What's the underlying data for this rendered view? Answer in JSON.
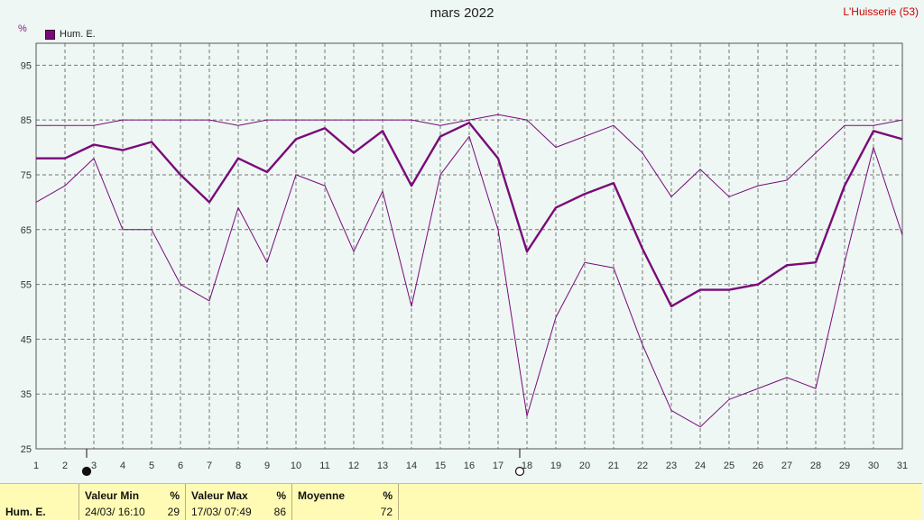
{
  "title": "mars 2022",
  "station": "L'Huisserie (53)",
  "unit": "%",
  "legend": {
    "label": "Hum. E."
  },
  "chart_data": {
    "type": "line",
    "title": "mars 2022",
    "ylabel": "%",
    "ylim": [
      25,
      99
    ],
    "yticks": [
      25,
      35,
      45,
      55,
      65,
      75,
      85,
      95
    ],
    "x": [
      1,
      2,
      3,
      4,
      5,
      6,
      7,
      8,
      9,
      10,
      11,
      12,
      13,
      14,
      15,
      16,
      17,
      18,
      19,
      20,
      21,
      22,
      23,
      24,
      25,
      26,
      27,
      28,
      29,
      30,
      31
    ],
    "grid": true,
    "legend_position": "top-left",
    "series": [
      {
        "name": "Hum. E.",
        "role": "max",
        "values": [
          84,
          84,
          84,
          85,
          85,
          85,
          85,
          84,
          85,
          85,
          85,
          85,
          85,
          85,
          84,
          85,
          86,
          85,
          80,
          82,
          84,
          79,
          71,
          76,
          71,
          73,
          74,
          79,
          84,
          84,
          85
        ]
      },
      {
        "name": "Hum. E.",
        "role": "mean",
        "values": [
          78,
          78,
          80.5,
          79.5,
          81,
          75,
          70,
          78,
          75.5,
          81.5,
          83.5,
          79,
          83,
          73,
          82,
          84.5,
          78,
          61,
          69,
          71.5,
          73.5,
          61.5,
          51,
          54,
          54,
          55,
          58.5,
          59,
          73,
          83,
          81.5
        ]
      },
      {
        "name": "Hum. E.",
        "role": "min",
        "values": [
          70,
          73,
          78,
          65,
          65,
          55,
          52,
          69,
          59,
          75,
          73,
          61,
          72,
          51,
          75,
          82,
          65,
          31,
          49,
          59,
          58,
          44,
          32,
          29,
          34,
          36,
          38,
          36,
          59,
          80,
          64
        ]
      }
    ],
    "markers": [
      {
        "day": 3,
        "symbol": "full-moon"
      },
      {
        "day": 18,
        "symbol": "new-moon"
      }
    ],
    "colors": {
      "line": "#7a0a7a",
      "grid": "#777777",
      "axis": "#555555"
    }
  },
  "stats": {
    "row_label": "Hum. E.",
    "min": {
      "header": "Valeur Min",
      "unit": "%",
      "when": "24/03/  16:10",
      "value": "29"
    },
    "max": {
      "header": "Valeur Max",
      "unit": "%",
      "when": "17/03/  07:49",
      "value": "86"
    },
    "mean": {
      "header": "Moyenne",
      "unit": "%",
      "value": "72"
    }
  }
}
